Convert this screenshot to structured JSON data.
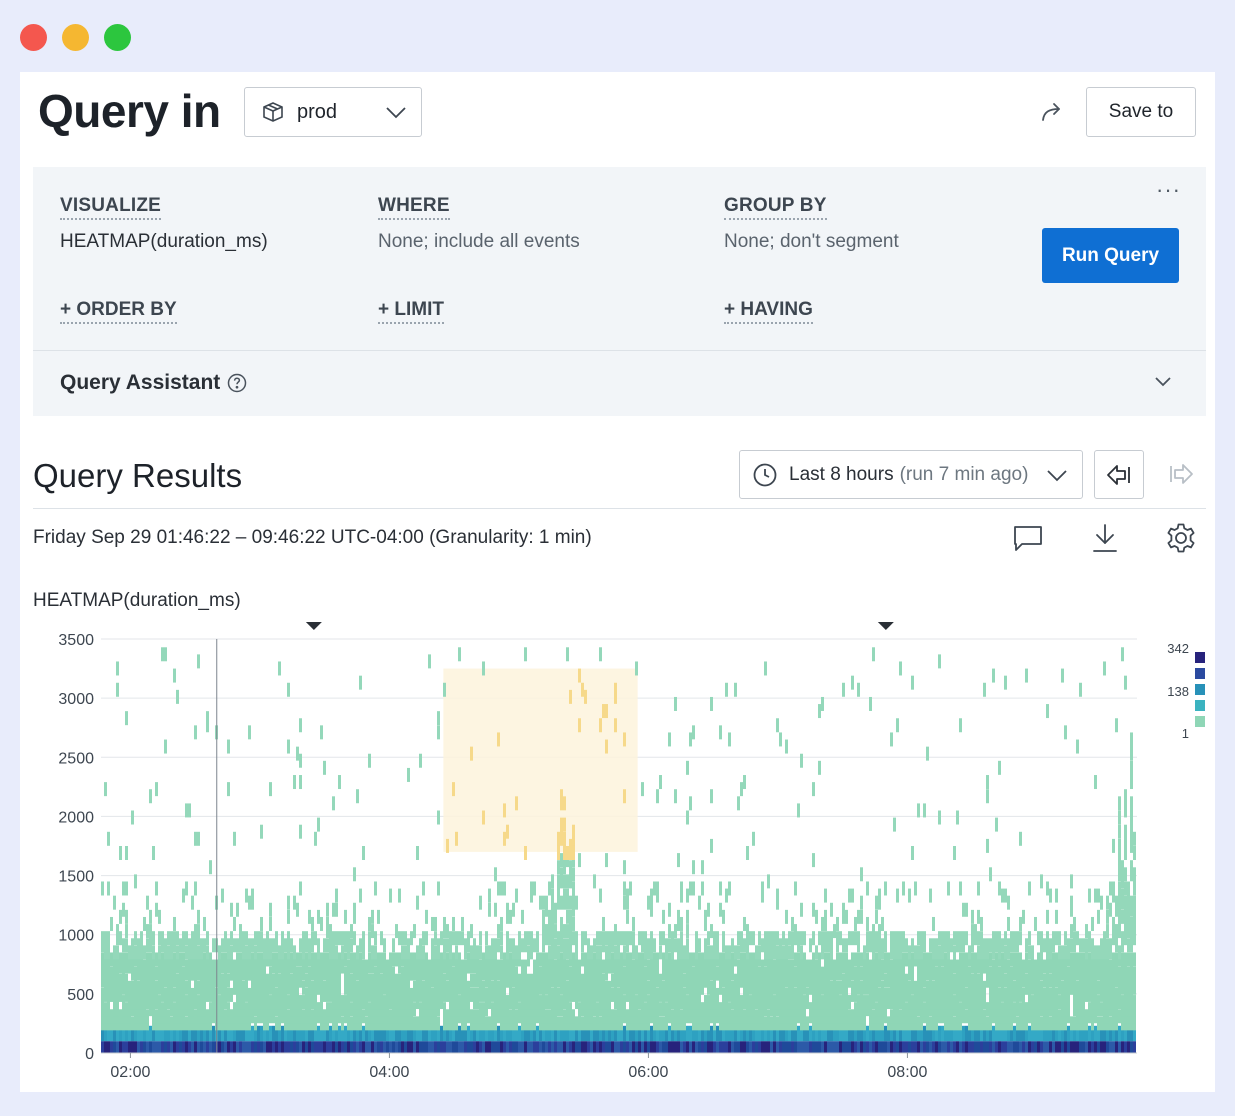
{
  "window_controls": [
    "close",
    "minimize",
    "maximize"
  ],
  "header": {
    "title": "Query in",
    "dataset": "prod",
    "dataset_icon": "dataset-box-icon",
    "share_icon": "share-arrow-icon",
    "save_label": "Save to"
  },
  "builder": {
    "visualize_label": "VISUALIZE",
    "visualize_value": "HEATMAP(duration_ms)",
    "where_label": "WHERE",
    "where_value": "None; include all events",
    "group_by_label": "GROUP BY",
    "group_by_value": "None; don't segment",
    "order_by_label": "+ ORDER BY",
    "limit_label": "+ LIMIT",
    "having_label": "+ HAVING",
    "run_label": "Run Query",
    "more_label": "···"
  },
  "assistant": {
    "label": "Query Assistant"
  },
  "results": {
    "title": "Query Results",
    "time_range_main": "Last 8 hours",
    "time_range_sub": "(run 7 min ago)",
    "range_text": "Friday Sep 29 01:46:22 – 09:46:22 UTC-04:00 (Granularity: 1 min)"
  },
  "colors": {
    "accent": "#0f6fd3",
    "heat_low": "#8fd6b6",
    "heat_mid": "#2ea1c1",
    "heat_high": "#27237c",
    "highlight": "#fde9b3"
  },
  "chart_data": {
    "type": "heatmap",
    "title": "HEATMAP(duration_ms)",
    "x_range": [
      "01:46:22",
      "09:46:22"
    ],
    "x_ticks": [
      "02:00",
      "04:00",
      "06:00",
      "08:00"
    ],
    "y_ticks": [
      0,
      500,
      1000,
      1500,
      2000,
      2500,
      3000,
      3500
    ],
    "ylim": [
      0,
      3500
    ],
    "legend_values": [
      "342",
      "138",
      "1"
    ],
    "highlight_region": {
      "x_start": "04:25",
      "x_end": "05:55",
      "y_start": 1700,
      "y_end": 3250
    },
    "markers": [
      "03:25",
      "07:50"
    ],
    "vertical_line": "02:40",
    "density_profile": [
      {
        "y_range": [
          0,
          100
        ],
        "count": "high (138-342)"
      },
      {
        "y_range": [
          100,
          250
        ],
        "count": "mid (~138)"
      },
      {
        "y_range": [
          250,
          900
        ],
        "count": "low (1-20)"
      },
      {
        "y_range": [
          900,
          1500
        ],
        "count": "sparse (1)"
      }
    ],
    "spikes": [
      {
        "time": "04:55-05:25",
        "y_max": 3100
      },
      {
        "time": "09:15-09:45",
        "y_max": 3300
      }
    ]
  }
}
